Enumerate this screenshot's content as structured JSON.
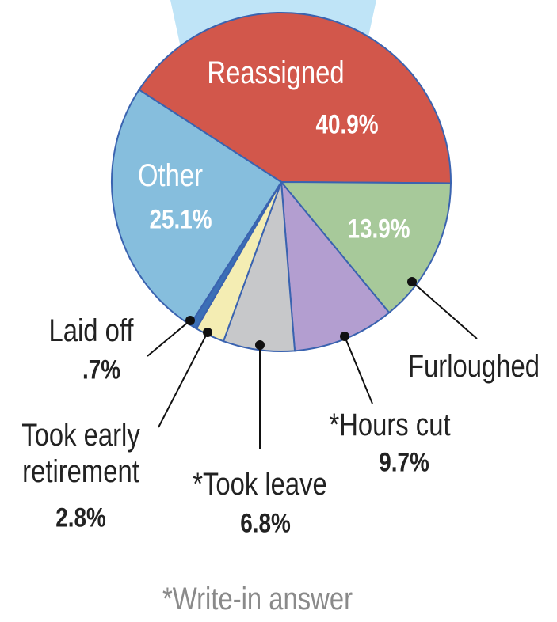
{
  "chart_data": {
    "type": "pie",
    "categories": [
      "Reassigned",
      "Furloughed",
      "*Hours cut",
      "*Took leave",
      "Took early retirement",
      "Laid off",
      "Other"
    ],
    "values": [
      40.9,
      13.9,
      9.7,
      6.8,
      2.8,
      0.7,
      25.1
    ],
    "value_labels": [
      "40.9%",
      "13.9%",
      "9.7%",
      "6.8%",
      "2.8%",
      ".7%",
      "25.1%"
    ],
    "colors": [
      "#d2574b",
      "#a7c99a",
      "#b39ed0",
      "#c7c8ca",
      "#f4edb3",
      "#3b6fb6",
      "#86bedd"
    ],
    "footnote": "*Write-in answer"
  }
}
